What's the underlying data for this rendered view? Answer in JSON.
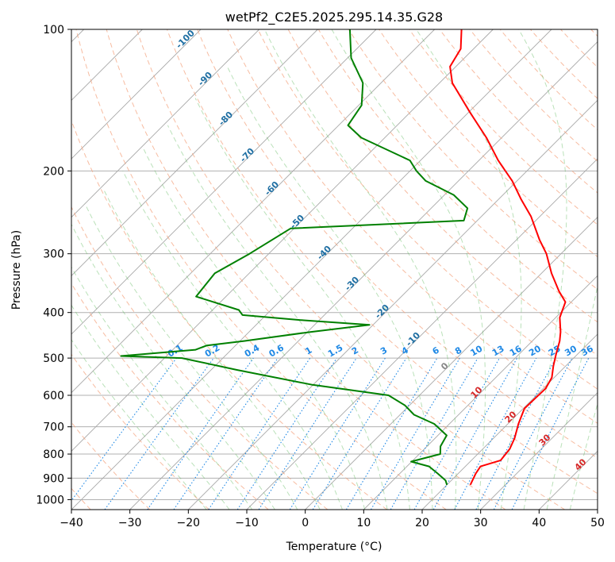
{
  "chart_data": {
    "type": "line",
    "subtype": "skew-t log-p sounding",
    "title": "wetPf2_C2E5.2025.295.14.35.G28",
    "xlabel": "Temperature (°C)",
    "ylabel": "Pressure (hPa)",
    "xlim": [
      -40,
      50
    ],
    "ylim": [
      1050,
      100
    ],
    "x_ticks": [
      -40,
      -30,
      -20,
      -10,
      0,
      10,
      20,
      30,
      40,
      50
    ],
    "y_ticks": [
      100,
      200,
      300,
      400,
      500,
      600,
      700,
      800,
      900,
      1000
    ],
    "series": [
      {
        "name": "Temperature",
        "color": "#ff0000",
        "points": [
          {
            "p": 930,
            "t": 24.0
          },
          {
            "p": 880,
            "t": 23.0
          },
          {
            "p": 850,
            "t": 22.6
          },
          {
            "p": 825,
            "t": 25.0
          },
          {
            "p": 780,
            "t": 24.6
          },
          {
            "p": 740,
            "t": 23.6
          },
          {
            "p": 690,
            "t": 21.8
          },
          {
            "p": 640,
            "t": 20.2
          },
          {
            "p": 610,
            "t": 20.3
          },
          {
            "p": 580,
            "t": 20.4
          },
          {
            "p": 550,
            "t": 19.6
          },
          {
            "p": 520,
            "t": 17.9
          },
          {
            "p": 490,
            "t": 16.3
          },
          {
            "p": 460,
            "t": 14.7
          },
          {
            "p": 440,
            "t": 13.3
          },
          {
            "p": 410,
            "t": 10.7
          },
          {
            "p": 380,
            "t": 9.0
          },
          {
            "p": 360,
            "t": 6.0
          },
          {
            "p": 330,
            "t": 1.7
          },
          {
            "p": 300,
            "t": -2.5
          },
          {
            "p": 280,
            "t": -6.1
          },
          {
            "p": 250,
            "t": -11.5
          },
          {
            "p": 230,
            "t": -16.1
          },
          {
            "p": 210,
            "t": -20.8
          },
          {
            "p": 190,
            "t": -26.7
          },
          {
            "p": 170,
            "t": -32.6
          },
          {
            "p": 150,
            "t": -39.8
          },
          {
            "p": 130,
            "t": -47.8
          },
          {
            "p": 120,
            "t": -51.0
          },
          {
            "p": 110,
            "t": -52.2
          },
          {
            "p": 100,
            "t": -55.4
          }
        ]
      },
      {
        "name": "Dewpoint",
        "color": "#008000",
        "points": [
          {
            "p": 930,
            "t": 20.0
          },
          {
            "p": 910,
            "t": 19.0
          },
          {
            "p": 880,
            "t": 16.5
          },
          {
            "p": 850,
            "t": 13.8
          },
          {
            "p": 830,
            "t": 9.9
          },
          {
            "p": 800,
            "t": 13.6
          },
          {
            "p": 770,
            "t": 12.3
          },
          {
            "p": 730,
            "t": 11.5
          },
          {
            "p": 690,
            "t": 7.4
          },
          {
            "p": 660,
            "t": 2.4
          },
          {
            "p": 630,
            "t": -0.8
          },
          {
            "p": 600,
            "t": -5.3
          },
          {
            "p": 570,
            "t": -20.1
          },
          {
            "p": 530,
            "t": -35.5
          },
          {
            "p": 500,
            "t": -47.0
          },
          {
            "p": 495,
            "t": -57.8
          },
          {
            "p": 480,
            "t": -46.1
          },
          {
            "p": 470,
            "t": -44.9
          },
          {
            "p": 460,
            "t": -39.3
          },
          {
            "p": 440,
            "t": -29.5
          },
          {
            "p": 425,
            "t": -20.6
          },
          {
            "p": 415,
            "t": -33.2
          },
          {
            "p": 405,
            "t": -44.0
          },
          {
            "p": 395,
            "t": -45.5
          },
          {
            "p": 370,
            "t": -55.1
          },
          {
            "p": 330,
            "t": -55.9
          },
          {
            "p": 300,
            "t": -53.3
          },
          {
            "p": 265,
            "t": -50.6
          },
          {
            "p": 255,
            "t": -22.3
          },
          {
            "p": 240,
            "t": -23.8
          },
          {
            "p": 225,
            "t": -28.4
          },
          {
            "p": 210,
            "t": -35.6
          },
          {
            "p": 200,
            "t": -38.9
          },
          {
            "p": 190,
            "t": -41.8
          },
          {
            "p": 170,
            "t": -54.0
          },
          {
            "p": 160,
            "t": -58.4
          },
          {
            "p": 145,
            "t": -59.5
          },
          {
            "p": 130,
            "t": -63.1
          },
          {
            "p": 115,
            "t": -69.4
          },
          {
            "p": 100,
            "t": -74.5
          }
        ]
      }
    ],
    "dry_adiabat_labels": [
      "-100",
      "-90",
      "-80",
      "-70",
      "-60",
      "-50",
      "-40",
      "-30",
      "-20",
      "-10",
      "0",
      "10",
      "20",
      "30",
      "40"
    ],
    "mixing_ratio_labels": [
      "0.1",
      "0.2",
      "0.4",
      "0.6",
      "1",
      "1.5",
      "2",
      "3",
      "4",
      "6",
      "8",
      "10",
      "13",
      "16",
      "20",
      "25",
      "30",
      "36"
    ],
    "colors": {
      "temperature": "#ff0000",
      "dewpoint": "#008000",
      "dry_adiabat": "#f4a582",
      "moist_adiabat": "#66bd63",
      "mixing_ratio": "#1e88e5",
      "isotherm": "#999999",
      "label_cold": "#1f6fa3",
      "label_warm": "#d62728",
      "label_zero": "#888888",
      "mr_label": "#1e88e5"
    }
  }
}
